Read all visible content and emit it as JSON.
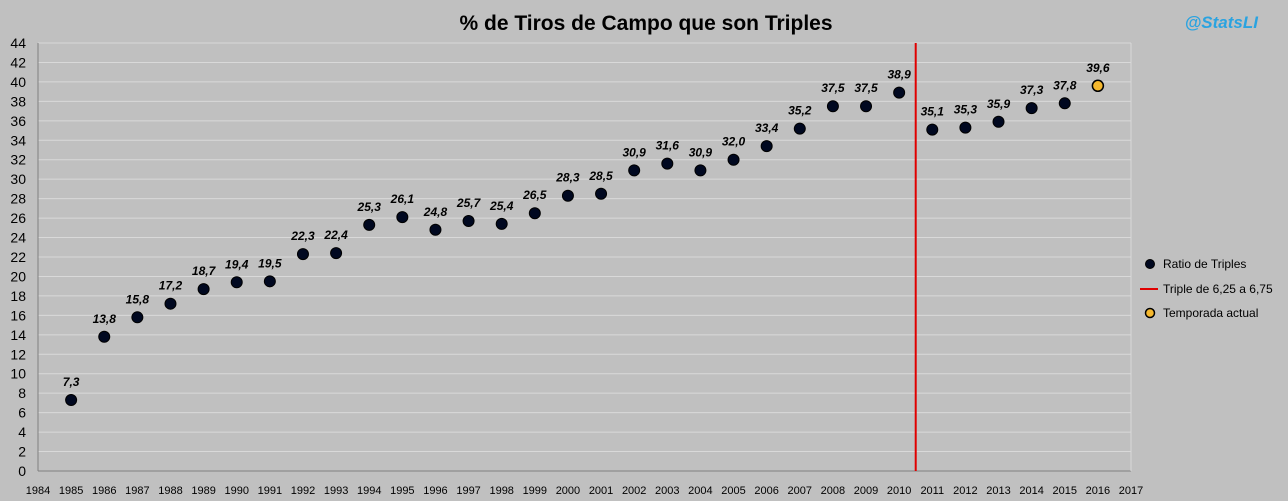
{
  "chart_data": {
    "type": "scatter",
    "title": "% de Tiros de Campo que son Triples",
    "credit": "@StatsLI",
    "ylim": [
      0,
      44
    ],
    "yticks": [
      0,
      2,
      4,
      6,
      8,
      10,
      12,
      14,
      16,
      18,
      20,
      22,
      24,
      26,
      28,
      30,
      32,
      34,
      36,
      38,
      40,
      42,
      44
    ],
    "xlim": [
      1984,
      2017
    ],
    "xticks": [
      1984,
      1985,
      1986,
      1987,
      1988,
      1989,
      1990,
      1991,
      1992,
      1993,
      1994,
      1995,
      1996,
      1997,
      1998,
      1999,
      2000,
      2001,
      2002,
      2003,
      2004,
      2005,
      2006,
      2007,
      2008,
      2009,
      2010,
      2011,
      2012,
      2013,
      2014,
      2015,
      2016,
      2017
    ],
    "grid": true,
    "legend_position": "right",
    "series": [
      {
        "name": "Ratio de Triples",
        "color": "#000820",
        "x": [
          1985,
          1986,
          1987,
          1988,
          1989,
          1990,
          1991,
          1992,
          1993,
          1994,
          1995,
          1996,
          1997,
          1998,
          1999,
          2000,
          2001,
          2002,
          2003,
          2004,
          2005,
          2006,
          2007,
          2008,
          2009,
          2010,
          2011,
          2012,
          2013,
          2014,
          2015
        ],
        "y": [
          7.3,
          13.8,
          15.8,
          17.2,
          18.7,
          19.4,
          19.5,
          22.3,
          22.4,
          25.3,
          26.1,
          24.8,
          25.7,
          25.4,
          26.5,
          28.3,
          28.5,
          30.9,
          31.6,
          30.9,
          32.0,
          33.4,
          35.2,
          37.5,
          37.5,
          38.9,
          35.1,
          35.3,
          35.9,
          37.3,
          37.8
        ],
        "labels": [
          "7,3",
          "13,8",
          "15,8",
          "17,2",
          "18,7",
          "19,4",
          "19,5",
          "22,3",
          "22,4",
          "25,3",
          "26,1",
          "24,8",
          "25,7",
          "25,4",
          "26,5",
          "28,3",
          "28,5",
          "30,9",
          "31,6",
          "30,9",
          "32,0",
          "33,4",
          "35,2",
          "37,5",
          "37,5",
          "38,9",
          "35,1",
          "35,3",
          "35,9",
          "37,3",
          "37,8"
        ]
      },
      {
        "name": "Temporada actual",
        "color": "#f5b82e",
        "x": [
          2016
        ],
        "y": [
          39.6
        ],
        "labels": [
          "39,6"
        ]
      }
    ],
    "reference_line": {
      "name": "Triple de 6,25  a 6,75",
      "x": 2010.5,
      "color": "#e00000"
    }
  }
}
